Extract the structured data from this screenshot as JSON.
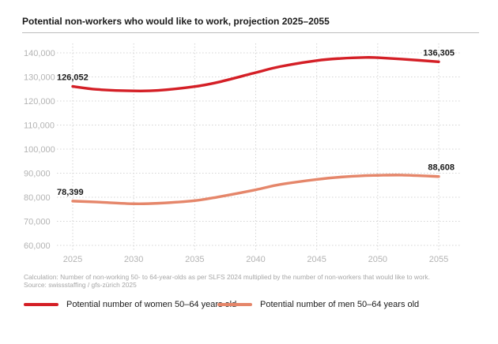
{
  "chart_data": {
    "type": "line",
    "title": "Potential non-workers who would like to work, projection 2025–2055",
    "x": [
      2025,
      2027,
      2030,
      2032,
      2035,
      2037,
      2040,
      2042,
      2045,
      2047,
      2049,
      2050,
      2052,
      2055
    ],
    "xticks": [
      "2025",
      "2030",
      "2035",
      "2040",
      "2045",
      "2050",
      "2055"
    ],
    "xlim": [
      2025,
      2055
    ],
    "ylim": [
      60000,
      140000
    ],
    "yticks": [
      "60,000",
      "70,000",
      "80,000",
      "90,000",
      "100,000",
      "110,000",
      "120,000",
      "130,000",
      "140,000"
    ],
    "series": [
      {
        "name": "Potential number of women 50–64 years old",
        "color": "#d41f26",
        "values": [
          126052,
          124800,
          124200,
          124400,
          126000,
          127900,
          131800,
          134300,
          136800,
          137700,
          138100,
          138000,
          137400,
          136305
        ],
        "start_label": "126,052",
        "end_label": "136,305"
      },
      {
        "name": "Potential number of men 50–64 years old",
        "color": "#e5866a",
        "values": [
          78399,
          78000,
          77300,
          77500,
          78600,
          80200,
          83100,
          85300,
          87400,
          88400,
          89000,
          89100,
          89200,
          88608
        ],
        "start_label": "78,399",
        "end_label": "88,608"
      }
    ],
    "grid": "horizontal",
    "legend_position": "bottom-left"
  },
  "notes": [
    "Calculation: Number of non-working 50- to 64-year-olds as per SLFS 2024 multiplied by the number of non-workers that would like to work.",
    "Source: swissstaffing / gfs-zürich 2025"
  ]
}
